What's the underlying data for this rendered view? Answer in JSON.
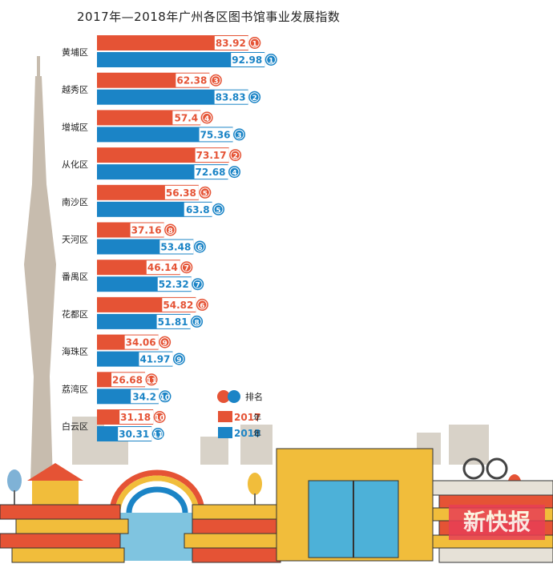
{
  "chart_data": {
    "type": "bar",
    "title": "2017年—2018年广州各区图书馆事业发展指数",
    "categories": [
      "黄埔区",
      "越秀区",
      "增城区",
      "从化区",
      "南沙区",
      "天河区",
      "番禺区",
      "花都区",
      "海珠区",
      "荔湾区",
      "白云区"
    ],
    "series": [
      {
        "name": "2017年",
        "color": "#e55335",
        "values": [
          83.92,
          62.38,
          57.4,
          73.17,
          56.38,
          37.16,
          46.14,
          54.82,
          34.06,
          26.68,
          31.18
        ],
        "ranks": [
          "1",
          "3",
          "4",
          "2",
          "5",
          "8",
          "7",
          "6",
          "9",
          "11",
          "10"
        ]
      },
      {
        "name": "2018年",
        "color": "#1b84c6",
        "values": [
          92.98,
          83.83,
          75.36,
          72.68,
          63.8,
          53.48,
          52.32,
          51.81,
          41.97,
          34.2,
          30.31
        ],
        "ranks": [
          "1",
          "2",
          "3",
          "4",
          "5",
          "6",
          "7",
          "8",
          "9",
          "10",
          "11"
        ]
      }
    ],
    "value_labels": {
      "2017": [
        "83.92",
        "62.38",
        "57.4",
        "73.17",
        "56.38",
        "37.16",
        "46.14",
        "54.82",
        "34.06",
        "26.68",
        "31.18"
      ],
      "2018": [
        "92.98",
        "83.83",
        "75.36",
        "72.68",
        "63.8",
        "53.48",
        "52.32",
        "51.81",
        "41.97",
        "34.2",
        "30.31"
      ]
    },
    "legend": {
      "rank_label": "排名",
      "year_2017": "2017",
      "year_2018": "2018",
      "year_suffix": "年"
    },
    "legend_placement": "bottom-right",
    "xlim": [
      0,
      100
    ]
  },
  "brand": {
    "text": "新快报"
  },
  "colors": {
    "bar_2017": "#e55335",
    "bar_2018": "#1b84c6",
    "tower": "#c7bcae",
    "skyline": "#d8d2c8",
    "book_red": "#e55335",
    "book_yellow": "#f1bd3b"
  }
}
